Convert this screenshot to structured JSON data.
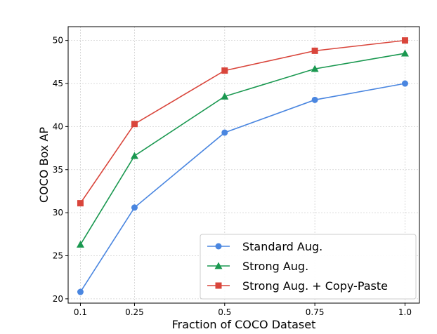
{
  "chart_data": {
    "type": "line",
    "title": "",
    "xlabel": "Fraction of COCO Dataset",
    "ylabel": "COCO Box AP",
    "x": [
      0.1,
      0.25,
      0.5,
      0.75,
      1.0
    ],
    "x_tick_labels": [
      "0.1",
      "0.25",
      "0.5",
      "0.75",
      "1.0"
    ],
    "y_ticks": [
      20,
      25,
      30,
      35,
      40,
      45,
      50
    ],
    "xlim": [
      0.066,
      1.04
    ],
    "ylim": [
      19.5,
      51.6
    ],
    "grid": true,
    "legend_position": "lower-right",
    "series": [
      {
        "name": "Standard Aug.",
        "color": "#4a86e0",
        "marker": "circle",
        "values": [
          20.8,
          30.6,
          39.3,
          43.1,
          45.0
        ]
      },
      {
        "name": "Strong Aug.",
        "color": "#1a9850",
        "marker": "triangle",
        "values": [
          26.3,
          36.6,
          43.5,
          46.7,
          48.5
        ]
      },
      {
        "name": "Strong Aug. + Copy-Paste",
        "color": "#d9453b",
        "marker": "square",
        "values": [
          31.1,
          40.3,
          46.5,
          48.8,
          50.0
        ]
      }
    ]
  }
}
